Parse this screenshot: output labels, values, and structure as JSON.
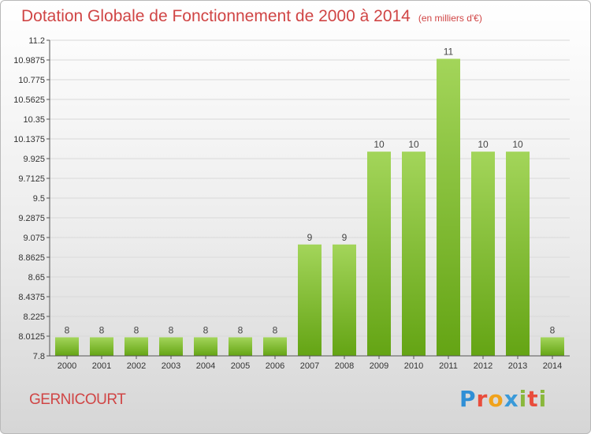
{
  "title": "Dotation Globale de Fonctionnement de 2000 à 2014",
  "unit": "(en milliers d'€)",
  "place": "GERNICOURT",
  "logo_letters": [
    "P",
    "r",
    "o",
    "x",
    "i",
    "t",
    "i"
  ],
  "colors": {
    "bar_light": "#a3d55a",
    "bar_dark": "#64a414",
    "title": "#d04545"
  },
  "chart_data": {
    "type": "bar",
    "title": "Dotation Globale de Fonctionnement de 2000 à 2014",
    "xlabel": "",
    "ylabel": "",
    "categories": [
      "2000",
      "2001",
      "2002",
      "2003",
      "2004",
      "2005",
      "2006",
      "2007",
      "2008",
      "2009",
      "2010",
      "2011",
      "2012",
      "2013",
      "2014"
    ],
    "values": [
      8,
      8,
      8,
      8,
      8,
      8,
      8,
      9,
      9,
      10,
      10,
      11,
      10,
      10,
      8
    ],
    "data_labels": [
      "8",
      "8",
      "8",
      "8",
      "8",
      "8",
      "8",
      "9",
      "9",
      "10",
      "10",
      "11",
      "10",
      "10",
      "8"
    ],
    "ylim": [
      7.8,
      11.2
    ],
    "yticks": [
      7.8,
      8.0125,
      8.225,
      8.4375,
      8.65,
      8.8625,
      9.075,
      9.2875,
      9.5,
      9.7125,
      9.925,
      10.1375,
      10.35,
      10.5625,
      10.775,
      10.9875,
      11.2
    ],
    "ytick_labels": [
      "7.8",
      "8.0125",
      "8.225",
      "8.4375",
      "8.65",
      "8.8625",
      "9.075",
      "9.2875",
      "9.5",
      "9.7125",
      "9.925",
      "10.1375",
      "10.35",
      "10.5625",
      "10.775",
      "10.9875",
      "11.2"
    ],
    "grid": true
  }
}
